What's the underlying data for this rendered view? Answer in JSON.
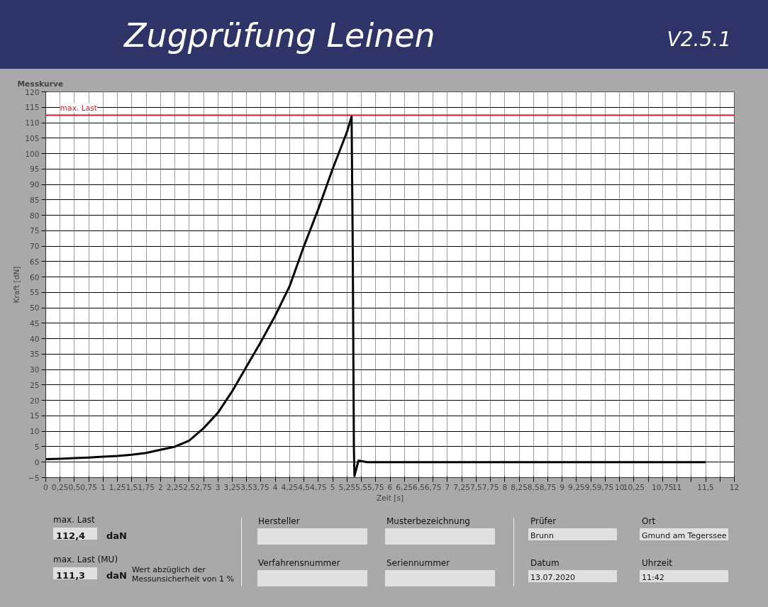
{
  "chart_data": {
    "type": "line",
    "title": "Zugprüfung Leinen",
    "subtitle": "V2.5.1",
    "xlabel": "Zeit [s]",
    "ylabel": "Kraft [dN]",
    "x": [
      0,
      0.25,
      0.5,
      0.75,
      1,
      1.25,
      1.5,
      1.75,
      2,
      2.25,
      2.5,
      2.75,
      3,
      3.25,
      3.5,
      3.75,
      4,
      4.25,
      4.5,
      4.75,
      5,
      5.25,
      5.33,
      5.35,
      5.37,
      5.38,
      5.45,
      5.6,
      6,
      7,
      8,
      9,
      10,
      11,
      11.5
    ],
    "series": [
      {
        "color": "#000000",
        "values": [
          1,
          1.1,
          1.3,
          1.5,
          1.8,
          2,
          2.4,
          3,
          4,
          5,
          7,
          11,
          16,
          23,
          31,
          39,
          47.5,
          57,
          70,
          82,
          95,
          107,
          112,
          70,
          5,
          -4.5,
          0.5,
          0,
          0,
          0,
          0,
          0,
          0,
          0,
          0
        ]
      }
    ],
    "xlim": [
      0,
      12
    ],
    "ylim": [
      -5,
      120
    ],
    "xticks": [
      0,
      {
        "value": 0.25,
        "label": "0,25"
      },
      {
        "value": 0.5,
        "label": "0,5"
      },
      {
        "value": 0.75,
        "label": "0,75"
      },
      1,
      {
        "value": 1.25,
        "label": "1,25"
      },
      {
        "value": 1.5,
        "label": "1,5"
      },
      {
        "value": 1.75,
        "label": "1,75"
      },
      2,
      {
        "value": 2.25,
        "label": "2,25"
      },
      {
        "value": 2.5,
        "label": "2,5"
      },
      {
        "value": 2.75,
        "label": "2,75"
      },
      3,
      {
        "value": 3.25,
        "label": "3,25"
      },
      {
        "value": 3.5,
        "label": "3,5"
      },
      {
        "value": 3.75,
        "label": "3,75"
      },
      4,
      {
        "value": 4.25,
        "label": "4,25"
      },
      {
        "value": 4.5,
        "label": "4,5"
      },
      {
        "value": 4.75,
        "label": "4,75"
      },
      5,
      {
        "value": 5.25,
        "label": "5,25"
      },
      {
        "value": 5.5,
        "label": "5,5"
      },
      {
        "value": 5.75,
        "label": "5,75"
      },
      6,
      {
        "value": 6.25,
        "label": "6,25"
      },
      {
        "value": 6.5,
        "label": "6,5"
      },
      {
        "value": 6.75,
        "label": "6,75"
      },
      7,
      {
        "value": 7.25,
        "label": "7,25"
      },
      {
        "value": 7.5,
        "label": "7,5"
      },
      {
        "value": 7.75,
        "label": "7,75"
      },
      8,
      {
        "value": 8.25,
        "label": "8,25"
      },
      {
        "value": 8.5,
        "label": "8,5"
      },
      {
        "value": 8.75,
        "label": "8,75"
      },
      9,
      {
        "value": 9.25,
        "label": "9,25"
      },
      {
        "value": 9.5,
        "label": "9,5"
      },
      {
        "value": 9.75,
        "label": "9,75"
      },
      10,
      {
        "value": 10.25,
        "label": "10,25"
      },
      {
        "value": 10.5,
        "label": null
      },
      {
        "value": 10.75,
        "label": "10,75"
      },
      11,
      {
        "value": 11.25,
        "label": null
      },
      {
        "value": 11.5,
        "label": "11,5"
      },
      {
        "value": 11.75,
        "label": null
      },
      12
    ],
    "yticks": [
      -5,
      0,
      5,
      10,
      15,
      20,
      25,
      30,
      35,
      40,
      45,
      50,
      55,
      60,
      65,
      70,
      75,
      80,
      85,
      90,
      95,
      100,
      105,
      110,
      115,
      120
    ],
    "ref_lines": [
      {
        "axis": "y",
        "value": 112.4,
        "label": "max. Last",
        "color": "#c8202a"
      }
    ],
    "grid": true,
    "line_style": "solid",
    "marker": "none",
    "annotations": [
      "Messkurve",
      "max. Last",
      "112,4",
      "daN",
      "max. Last (MU)",
      "111,3",
      "daN",
      "Wert abzüglich der Messunsicherheit von 1 %",
      "Hersteller",
      "Musterbezeichnung",
      "Verfahrensnummer",
      "Seriennummer",
      "Prüfer",
      "Brunn",
      "Ort",
      "Gmund am Tegerssee",
      "Datum",
      "13.07.2020",
      "Uhrzeit",
      "11:42"
    ]
  }
}
